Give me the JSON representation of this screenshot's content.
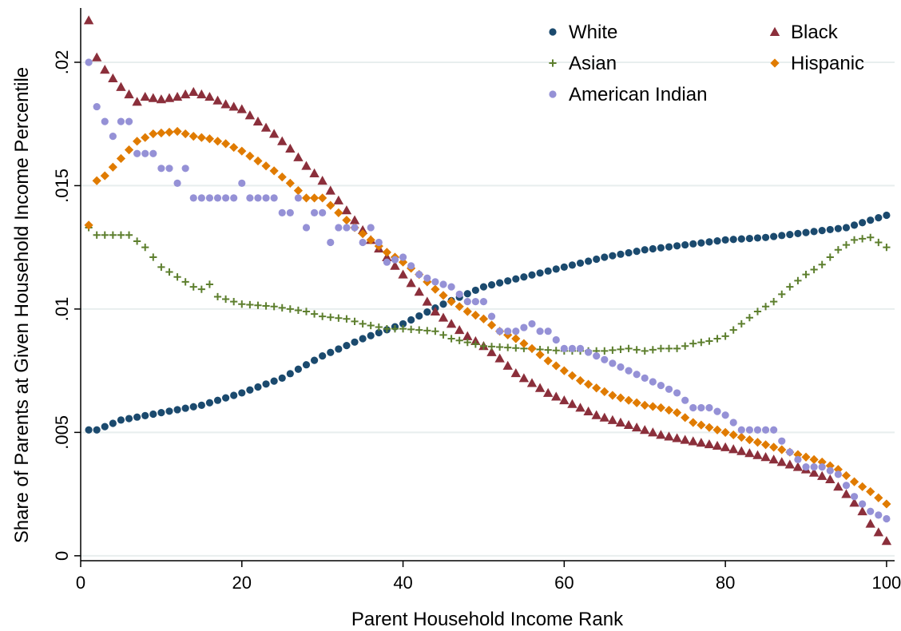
{
  "chart_data": {
    "type": "scatter",
    "xlabel": "Parent Household Income Rank",
    "ylabel": "Share of Parents at Given Household Income Percentile",
    "xlim": [
      0,
      101
    ],
    "ylim": [
      -0.0002,
      0.0222
    ],
    "xticks": [
      0,
      20,
      40,
      60,
      80,
      100
    ],
    "xtick_labels": [
      "0",
      "20",
      "40",
      "60",
      "80",
      "100"
    ],
    "yticks": [
      0,
      0.005,
      0.01,
      0.015,
      0.02
    ],
    "ytick_labels": [
      "0",
      ".005",
      ".01",
      ".015",
      ".02"
    ],
    "grid": "horizontal",
    "legend_position": "top-right",
    "series": [
      {
        "name": "White",
        "color": "#1b4a6e",
        "marker": "circle",
        "anchors": [
          [
            1,
            0.0051
          ],
          [
            2,
            0.0051
          ],
          [
            5,
            0.0055
          ],
          [
            10,
            0.0058
          ],
          [
            15,
            0.0061
          ],
          [
            20,
            0.0066
          ],
          [
            25,
            0.0072
          ],
          [
            30,
            0.0081
          ],
          [
            35,
            0.0088
          ],
          [
            40,
            0.0094
          ],
          [
            45,
            0.0102
          ],
          [
            50,
            0.0109
          ],
          [
            55,
            0.0113
          ],
          [
            60,
            0.0117
          ],
          [
            65,
            0.0121
          ],
          [
            70,
            0.0124
          ],
          [
            75,
            0.0126
          ],
          [
            80,
            0.0128
          ],
          [
            85,
            0.0129
          ],
          [
            90,
            0.0131
          ],
          [
            95,
            0.0133
          ],
          [
            100,
            0.0138
          ]
        ]
      },
      {
        "name": "Black",
        "color": "#8b2f3b",
        "marker": "triangle",
        "anchors": [
          [
            1,
            0.0217
          ],
          [
            2,
            0.0202
          ],
          [
            3,
            0.0197
          ],
          [
            5,
            0.019
          ],
          [
            7,
            0.0184
          ],
          [
            8,
            0.0186
          ],
          [
            10,
            0.0185
          ],
          [
            12,
            0.0186
          ],
          [
            14,
            0.0188
          ],
          [
            16,
            0.0186
          ],
          [
            18,
            0.0183
          ],
          [
            20,
            0.0181
          ],
          [
            22,
            0.0176
          ],
          [
            24,
            0.0171
          ],
          [
            26,
            0.0165
          ],
          [
            28,
            0.0158
          ],
          [
            30,
            0.0152
          ],
          [
            32,
            0.0144
          ],
          [
            34,
            0.0136
          ],
          [
            36,
            0.0128
          ],
          [
            38,
            0.0121
          ],
          [
            40,
            0.0114
          ],
          [
            42,
            0.0107
          ],
          [
            44,
            0.0099
          ],
          [
            46,
            0.0094
          ],
          [
            48,
            0.0089
          ],
          [
            50,
            0.0085
          ],
          [
            52,
            0.008
          ],
          [
            54,
            0.0074
          ],
          [
            56,
            0.007
          ],
          [
            58,
            0.0066
          ],
          [
            60,
            0.0063
          ],
          [
            62,
            0.006
          ],
          [
            64,
            0.0057
          ],
          [
            66,
            0.0055
          ],
          [
            68,
            0.0053
          ],
          [
            70,
            0.0051
          ],
          [
            72,
            0.0049
          ],
          [
            75,
            0.0047
          ],
          [
            80,
            0.0044
          ],
          [
            85,
            0.004
          ],
          [
            90,
            0.0035
          ],
          [
            93,
            0.0031
          ],
          [
            95,
            0.0025
          ],
          [
            97,
            0.0018
          ],
          [
            98,
            0.0013
          ],
          [
            100,
            0.0006
          ]
        ]
      },
      {
        "name": "Asian",
        "color": "#5d7f2e",
        "marker": "plus",
        "anchors": [
          [
            1,
            0.0133
          ],
          [
            2,
            0.013
          ],
          [
            6,
            0.013
          ],
          [
            8,
            0.0125
          ],
          [
            9,
            0.0121
          ],
          [
            10,
            0.0117
          ],
          [
            12,
            0.0113
          ],
          [
            14,
            0.0109
          ],
          [
            15,
            0.0108
          ],
          [
            16,
            0.011
          ],
          [
            17,
            0.0105
          ],
          [
            20,
            0.0102
          ],
          [
            24,
            0.0101
          ],
          [
            28,
            0.0099
          ],
          [
            30,
            0.0097
          ],
          [
            33,
            0.0096
          ],
          [
            35,
            0.0094
          ],
          [
            38,
            0.0092
          ],
          [
            40,
            0.0092
          ],
          [
            44,
            0.0091
          ],
          [
            46,
            0.0088
          ],
          [
            50,
            0.0085
          ],
          [
            55,
            0.0084
          ],
          [
            60,
            0.0083
          ],
          [
            65,
            0.0083
          ],
          [
            68,
            0.0084
          ],
          [
            70,
            0.0083
          ],
          [
            72,
            0.0084
          ],
          [
            74,
            0.0084
          ],
          [
            76,
            0.0086
          ],
          [
            78,
            0.0087
          ],
          [
            80,
            0.0089
          ],
          [
            82,
            0.0094
          ],
          [
            84,
            0.0099
          ],
          [
            86,
            0.0103
          ],
          [
            88,
            0.0109
          ],
          [
            90,
            0.0114
          ],
          [
            92,
            0.0118
          ],
          [
            94,
            0.0124
          ],
          [
            96,
            0.0128
          ],
          [
            98,
            0.0129
          ],
          [
            100,
            0.0125
          ]
        ]
      },
      {
        "name": "Hispanic",
        "color": "#e07b00",
        "marker": "diamond",
        "anchors": [
          [
            1,
            0.0134
          ],
          [
            2,
            0.0152
          ],
          [
            3,
            0.0154
          ],
          [
            5,
            0.0161
          ],
          [
            7,
            0.0168
          ],
          [
            9,
            0.0171
          ],
          [
            12,
            0.0172
          ],
          [
            14,
            0.017
          ],
          [
            16,
            0.0169
          ],
          [
            18,
            0.0167
          ],
          [
            20,
            0.0164
          ],
          [
            22,
            0.016
          ],
          [
            24,
            0.0156
          ],
          [
            26,
            0.0151
          ],
          [
            28,
            0.0145
          ],
          [
            30,
            0.0145
          ],
          [
            32,
            0.0139
          ],
          [
            34,
            0.0133
          ],
          [
            36,
            0.0128
          ],
          [
            38,
            0.0123
          ],
          [
            40,
            0.0119
          ],
          [
            42,
            0.0114
          ],
          [
            44,
            0.0108
          ],
          [
            46,
            0.0103
          ],
          [
            48,
            0.0099
          ],
          [
            50,
            0.0096
          ],
          [
            52,
            0.0091
          ],
          [
            54,
            0.0088
          ],
          [
            56,
            0.0084
          ],
          [
            58,
            0.0079
          ],
          [
            60,
            0.0075
          ],
          [
            62,
            0.0071
          ],
          [
            64,
            0.0068
          ],
          [
            66,
            0.0065
          ],
          [
            68,
            0.0063
          ],
          [
            70,
            0.0061
          ],
          [
            72,
            0.006
          ],
          [
            74,
            0.0058
          ],
          [
            76,
            0.0054
          ],
          [
            78,
            0.0052
          ],
          [
            80,
            0.005
          ],
          [
            82,
            0.0048
          ],
          [
            84,
            0.0046
          ],
          [
            86,
            0.0044
          ],
          [
            88,
            0.0042
          ],
          [
            90,
            0.004
          ],
          [
            92,
            0.0038
          ],
          [
            94,
            0.0035
          ],
          [
            96,
            0.003
          ],
          [
            98,
            0.0026
          ],
          [
            100,
            0.0021
          ]
        ]
      },
      {
        "name": "American Indian",
        "color": "#9591d6",
        "marker": "circle",
        "anchors": [
          [
            1,
            0.02
          ],
          [
            2,
            0.0182
          ],
          [
            3,
            0.0176
          ],
          [
            4,
            0.017
          ],
          [
            5,
            0.0176
          ],
          [
            6,
            0.0176
          ],
          [
            7,
            0.0163
          ],
          [
            9,
            0.0163
          ],
          [
            10,
            0.0157
          ],
          [
            11,
            0.0157
          ],
          [
            12,
            0.0151
          ],
          [
            13,
            0.0157
          ],
          [
            14,
            0.0145
          ],
          [
            19,
            0.0145
          ],
          [
            20,
            0.0151
          ],
          [
            21,
            0.0145
          ],
          [
            24,
            0.0145
          ],
          [
            25,
            0.0139
          ],
          [
            26,
            0.0139
          ],
          [
            27,
            0.0145
          ],
          [
            28,
            0.0133
          ],
          [
            29,
            0.0139
          ],
          [
            30,
            0.0139
          ],
          [
            31,
            0.0127
          ],
          [
            32,
            0.0133
          ],
          [
            34,
            0.0133
          ],
          [
            35,
            0.0127
          ],
          [
            36,
            0.0133
          ],
          [
            37,
            0.0127
          ],
          [
            38,
            0.0119
          ],
          [
            40,
            0.0121
          ],
          [
            42,
            0.0114
          ],
          [
            44,
            0.0111
          ],
          [
            46,
            0.0109
          ],
          [
            48,
            0.0103
          ],
          [
            50,
            0.0103
          ],
          [
            52,
            0.0091
          ],
          [
            54,
            0.0091
          ],
          [
            56,
            0.0094
          ],
          [
            57,
            0.0091
          ],
          [
            58,
            0.0091
          ],
          [
            60,
            0.0084
          ],
          [
            62,
            0.0084
          ],
          [
            64,
            0.0081
          ],
          [
            66,
            0.0078
          ],
          [
            68,
            0.0075
          ],
          [
            70,
            0.0072
          ],
          [
            72,
            0.0069
          ],
          [
            74,
            0.0066
          ],
          [
            76,
            0.006
          ],
          [
            78,
            0.006
          ],
          [
            80,
            0.0057
          ],
          [
            82,
            0.0051
          ],
          [
            84,
            0.0051
          ],
          [
            86,
            0.0051
          ],
          [
            88,
            0.0042
          ],
          [
            90,
            0.0036
          ],
          [
            92,
            0.0036
          ],
          [
            94,
            0.0033
          ],
          [
            96,
            0.0024
          ],
          [
            98,
            0.0018
          ],
          [
            100,
            0.0015
          ]
        ]
      }
    ]
  }
}
